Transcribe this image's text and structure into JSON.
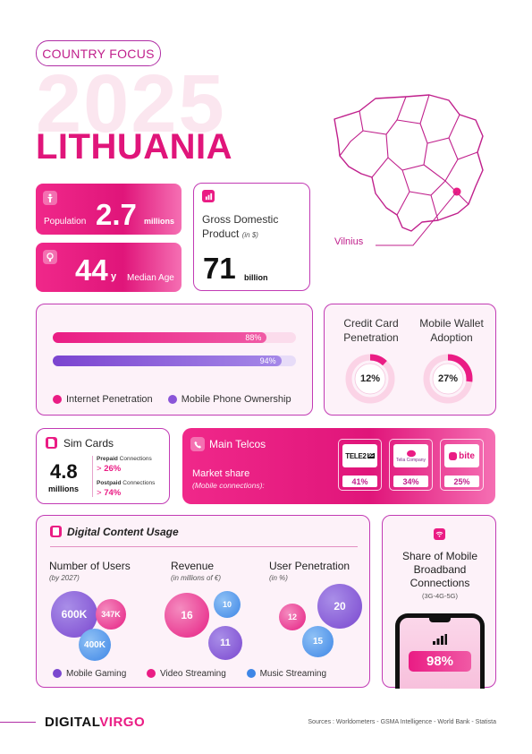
{
  "header": {
    "badge": "COUNTRY FOCUS",
    "year": "2025",
    "country": "LITHUANIA"
  },
  "population": {
    "label": "Population",
    "value": "2.7",
    "unit": "millions"
  },
  "median_age": {
    "value": "44",
    "suffix": "y",
    "label": "Median Age"
  },
  "gdp": {
    "label_line1": "Gross Domestic",
    "label_line2": "Product",
    "note": "(in $)",
    "value": "71",
    "unit": "billion"
  },
  "map": {
    "capital": "Vilnius"
  },
  "penetration": {
    "bars": [
      {
        "label": "Internet Penetration",
        "value_text": "88%",
        "fraction": 0.88,
        "color": "#ea1c84"
      },
      {
        "label": "Mobile Phone Ownership",
        "value_text": "94%",
        "fraction": 0.94,
        "color": "#8a55d8"
      }
    ]
  },
  "credit": {
    "label_line1": "Credit Card",
    "label_line2": "Penetration",
    "value_text": "12%",
    "fraction": 0.12
  },
  "wallet": {
    "label_line1": "Mobile Wallet",
    "label_line2": "Adoption",
    "value_text": "27%",
    "fraction": 0.27
  },
  "sim": {
    "title": "Sim Cards",
    "value": "4.8",
    "unit": "millions",
    "prepaid_label": "Prepaid",
    "prepaid_suffix": "Connections",
    "prepaid_value": "26%",
    "postpaid_label": "Postpaid",
    "postpaid_suffix": "Connections",
    "postpaid_value": "74%"
  },
  "telcos": {
    "title": "Main Telcos",
    "subtitle": "Market share",
    "note": "(Mobile connections):",
    "items": [
      {
        "logo": "TELE2",
        "logo_badge": "5G",
        "share": "41%"
      },
      {
        "logo": "Telia Company",
        "share": "34%"
      },
      {
        "logo": "bite",
        "share": "25%"
      }
    ]
  },
  "digital": {
    "title": "Digital Content Usage",
    "users": {
      "title": "Number of Users",
      "note": "(by 2027)",
      "gaming": "600K",
      "video": "347K",
      "music": "400K"
    },
    "revenue": {
      "title": "Revenue",
      "note": "(in millions of €)",
      "video": "16",
      "music": "10",
      "gaming": "11"
    },
    "penetration": {
      "title": "User Penetration",
      "note": "(in %)",
      "video": "12",
      "gaming": "20",
      "music": "15"
    },
    "legend": [
      "Mobile Gaming",
      "Video Streaming",
      "Music Streaming"
    ]
  },
  "broadband": {
    "line1": "Share of Mobile",
    "line2": "Broadband",
    "line3": "Connections",
    "note": "(3G-4G-5G)",
    "value": "98%"
  },
  "footer": {
    "brand_a": "DIGITAL",
    "brand_b": "VIRGO",
    "sources": "Sources : Worldometers - GSMA Intelligence - World Bank - Statista"
  }
}
